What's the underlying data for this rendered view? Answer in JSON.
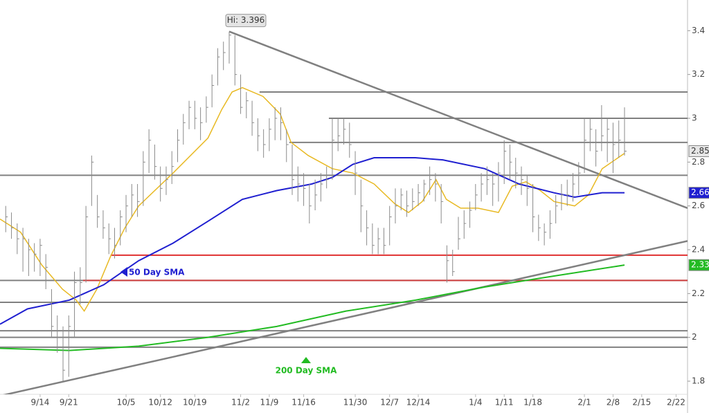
{
  "chart_data": {
    "type": "ohlc",
    "high_label": "Hi: 3.396",
    "x": [
      -6,
      -5,
      -4,
      -3,
      -2,
      -1,
      0,
      1,
      2,
      3,
      4,
      5,
      6,
      7,
      8,
      9,
      10,
      11,
      12,
      13,
      14,
      15,
      16,
      17,
      18,
      19,
      20,
      21,
      22,
      23,
      24,
      25,
      26,
      27,
      28,
      29,
      30,
      31,
      32,
      33,
      34,
      35,
      36,
      37,
      38,
      39,
      40,
      41,
      42,
      43,
      44,
      45,
      46,
      47,
      48,
      49,
      50,
      51,
      52,
      53,
      54,
      55,
      56,
      57,
      58,
      59,
      60,
      61,
      62,
      63,
      64,
      65,
      66,
      67,
      68,
      69,
      70,
      71,
      72,
      73,
      74,
      75,
      76,
      77,
      78,
      79,
      80,
      81,
      82,
      83,
      84,
      85,
      86,
      87,
      88,
      89,
      90,
      91,
      92,
      93,
      94,
      95,
      96,
      97,
      98,
      99,
      100,
      101,
      102
    ],
    "high": [
      2.6,
      2.57,
      2.52,
      2.5,
      2.45,
      2.43,
      2.45,
      2.38,
      2.22,
      2.1,
      2.05,
      2.1,
      2.3,
      2.32,
      2.6,
      2.83,
      2.65,
      2.58,
      2.52,
      2.5,
      2.58,
      2.65,
      2.7,
      2.7,
      2.85,
      2.95,
      2.88,
      2.78,
      2.78,
      2.85,
      2.95,
      3.02,
      3.08,
      3.08,
      3.05,
      3.1,
      3.2,
      3.32,
      3.35,
      3.396,
      3.38,
      3.2,
      3.12,
      3.08,
      3.0,
      2.95,
      3.0,
      3.05,
      3.05,
      2.95,
      2.88,
      2.78,
      2.75,
      2.7,
      2.72,
      2.75,
      2.78,
      3.0,
      3.0,
      3.0,
      2.98,
      2.85,
      2.72,
      2.58,
      2.52,
      2.5,
      2.5,
      2.6,
      2.68,
      2.68,
      2.67,
      2.68,
      2.7,
      2.72,
      2.78,
      2.75,
      2.7,
      2.42,
      2.4,
      2.55,
      2.58,
      2.62,
      2.7,
      2.75,
      2.78,
      2.75,
      2.8,
      2.9,
      2.88,
      2.82,
      2.78,
      2.74,
      2.7,
      2.56,
      2.52,
      2.58,
      2.65,
      2.7,
      2.72,
      2.75,
      2.8,
      3.0,
      3.0,
      2.95,
      3.06,
      3.0,
      2.98,
      2.99,
      3.05
    ],
    "low": [
      2.48,
      2.45,
      2.38,
      2.3,
      2.28,
      2.3,
      2.28,
      2.22,
      2.0,
      1.93,
      1.8,
      1.82,
      2.0,
      2.15,
      2.25,
      2.6,
      2.5,
      2.45,
      2.38,
      2.36,
      2.42,
      2.48,
      2.55,
      2.55,
      2.6,
      2.75,
      2.72,
      2.62,
      2.65,
      2.7,
      2.8,
      2.88,
      2.95,
      2.95,
      2.9,
      2.98,
      3.05,
      3.15,
      3.22,
      3.25,
      3.15,
      3.02,
      3.0,
      2.92,
      2.85,
      2.82,
      2.85,
      2.9,
      2.9,
      2.8,
      2.65,
      2.62,
      2.6,
      2.52,
      2.58,
      2.62,
      2.68,
      2.72,
      2.85,
      2.88,
      2.82,
      2.65,
      2.48,
      2.42,
      2.38,
      2.38,
      2.38,
      2.42,
      2.52,
      2.58,
      2.55,
      2.58,
      2.6,
      2.62,
      2.65,
      2.62,
      2.52,
      2.25,
      2.28,
      2.4,
      2.45,
      2.5,
      2.58,
      2.62,
      2.65,
      2.6,
      2.62,
      2.7,
      2.72,
      2.68,
      2.65,
      2.6,
      2.48,
      2.44,
      2.42,
      2.45,
      2.52,
      2.58,
      2.6,
      2.62,
      2.65,
      2.75,
      2.85,
      2.78,
      2.85,
      2.8,
      2.75,
      2.82,
      2.83
    ],
    "close": [
      2.55,
      2.5,
      2.45,
      2.45,
      2.4,
      2.38,
      2.42,
      2.32,
      2.05,
      2.0,
      1.85,
      2.05,
      2.25,
      2.25,
      2.55,
      2.8,
      2.55,
      2.5,
      2.45,
      2.42,
      2.55,
      2.6,
      2.65,
      2.62,
      2.8,
      2.9,
      2.78,
      2.68,
      2.72,
      2.78,
      2.9,
      2.98,
      3.05,
      3.0,
      2.98,
      3.05,
      3.15,
      3.28,
      3.3,
      3.38,
      3.2,
      3.05,
      3.08,
      2.98,
      2.92,
      2.88,
      2.95,
      3.0,
      2.98,
      2.88,
      2.72,
      2.7,
      2.68,
      2.6,
      2.65,
      2.7,
      2.72,
      2.9,
      2.92,
      2.95,
      2.88,
      2.75,
      2.6,
      2.5,
      2.42,
      2.45,
      2.42,
      2.55,
      2.6,
      2.65,
      2.6,
      2.62,
      2.66,
      2.7,
      2.72,
      2.7,
      2.62,
      2.35,
      2.3,
      2.45,
      2.52,
      2.58,
      2.65,
      2.7,
      2.72,
      2.7,
      2.75,
      2.85,
      2.8,
      2.75,
      2.72,
      2.68,
      2.55,
      2.5,
      2.48,
      2.52,
      2.6,
      2.65,
      2.65,
      2.7,
      2.75,
      2.9,
      2.95,
      2.85,
      2.92,
      2.95,
      2.88,
      2.9,
      2.85
    ],
    "bar_color": "#8a8a8a",
    "series": [
      {
        "color": "#e8b923",
        "x": [
          -7,
          -3.4,
          0.3,
          3.9,
          6.3,
          7.7,
          9.9,
          12.3,
          14.8,
          17.2,
          23.2,
          29.3,
          31.7,
          33.5,
          35.3,
          38.9,
          41.9,
          43.8,
          46.8,
          51,
          54.6,
          58.3,
          61.9,
          64.3,
          66.7,
          69.1,
          70.9,
          73.4,
          76.4,
          80,
          82.4,
          84.8,
          87.3,
          89.7,
          93.3,
          95.7,
          98.1,
          102
        ],
        "values": [
          2.54,
          2.48,
          2.33,
          2.22,
          2.17,
          2.12,
          2.22,
          2.37,
          2.5,
          2.6,
          2.75,
          2.91,
          3.04,
          3.12,
          3.14,
          3.1,
          3.02,
          2.89,
          2.83,
          2.77,
          2.75,
          2.7,
          2.61,
          2.57,
          2.62,
          2.72,
          2.63,
          2.59,
          2.59,
          2.57,
          2.69,
          2.71,
          2.67,
          2.62,
          2.6,
          2.65,
          2.77,
          2.84
        ]
      },
      {
        "name": "50 Day SMA",
        "color": "#1f1fd0",
        "x": [
          -7,
          -2.2,
          5.1,
          11.1,
          17.2,
          23.2,
          29.3,
          35.3,
          41.3,
          47.4,
          51,
          54.6,
          58.3,
          65.5,
          70.3,
          77.6,
          83.6,
          89.7,
          93.3,
          98.1,
          102
        ],
        "values": [
          2.06,
          2.13,
          2.17,
          2.24,
          2.35,
          2.43,
          2.53,
          2.63,
          2.67,
          2.7,
          2.73,
          2.79,
          2.82,
          2.82,
          2.81,
          2.77,
          2.7,
          2.66,
          2.64,
          2.66,
          2.66
        ]
      },
      {
        "name": "200 Day SMA",
        "color": "#22bb22",
        "x": [
          -7,
          5.1,
          17.2,
          29.3,
          41.3,
          53.4,
          65.5,
          77.6,
          89.7,
          102
        ],
        "values": [
          1.95,
          1.94,
          1.96,
          2.0,
          2.05,
          2.12,
          2.17,
          2.23,
          2.28,
          2.33
        ]
      }
    ],
    "levels": [
      {
        "value": 3.12,
        "color": "#808080",
        "from": 38.3
      },
      {
        "value": 3.0,
        "color": "#808080",
        "from": 50.4
      },
      {
        "value": 2.89,
        "color": "#808080",
        "from": 43.5
      },
      {
        "value": 2.74,
        "color": "#808080",
        "from": -7
      },
      {
        "value": 2.375,
        "color": "#e03030",
        "from": 12.3
      },
      {
        "value": 2.26,
        "color": "#808080",
        "from": -7
      },
      {
        "value": 2.26,
        "color": "#d04040",
        "from": 7.5
      },
      {
        "value": 2.16,
        "color": "#808080",
        "from": -7
      },
      {
        "value": 2.03,
        "color": "#808080",
        "from": -7
      },
      {
        "value": 2.0,
        "color": "#808080",
        "from": -7
      },
      {
        "value": 1.955,
        "color": "#808080",
        "from": -7
      }
    ],
    "trendlines": [
      {
        "color": "#808080",
        "x": [
          33,
          113
        ],
        "values": [
          3.396,
          2.59
        ]
      },
      {
        "color": "#808080",
        "x": [
          -7,
          113
        ],
        "values": [
          1.733,
          2.44
        ]
      }
    ],
    "xlim": [
      -7,
      113
    ],
    "ylim": [
      1.74,
      3.54
    ],
    "xticks": [
      {
        "value": 0,
        "label": "9/14"
      },
      {
        "value": 5,
        "label": "9/21"
      },
      {
        "value": 15,
        "label": "10/5"
      },
      {
        "value": 21,
        "label": "10/12"
      },
      {
        "value": 27,
        "label": "10/19"
      },
      {
        "value": 35,
        "label": "11/2"
      },
      {
        "value": 40,
        "label": "11/9"
      },
      {
        "value": 46,
        "label": "11/16"
      },
      {
        "value": 55,
        "label": "11/30"
      },
      {
        "value": 61,
        "label": "12/7"
      },
      {
        "value": 66,
        "label": "12/14"
      },
      {
        "value": 76,
        "label": "1/4"
      },
      {
        "value": 81,
        "label": "1/11"
      },
      {
        "value": 86,
        "label": "1/18"
      },
      {
        "value": 95,
        "label": "2/1"
      },
      {
        "value": 100,
        "label": "2/8"
      },
      {
        "value": 105,
        "label": "2/15"
      },
      {
        "value": 111,
        "label": "2/22"
      }
    ],
    "yticks": [
      1.8,
      2,
      2.2,
      2.4,
      2.6,
      2.8,
      3,
      3.2,
      3.4
    ]
  }
}
